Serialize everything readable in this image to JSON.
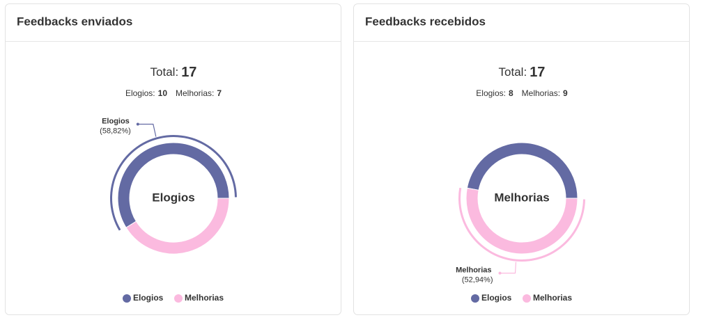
{
  "chart_data": [
    {
      "type": "donut",
      "title": "Feedbacks enviados",
      "total_label": "Total:",
      "total": 17,
      "summary_labels": [
        "Elogios:",
        "Melhorias:"
      ],
      "categories": [
        "Elogios",
        "Melhorias"
      ],
      "values": [
        10,
        7
      ],
      "colors": [
        "#636aa3",
        "#fbbadf"
      ],
      "center_label": "Elogios",
      "callout": {
        "label": "Elogios",
        "value_label": "(58,82%)"
      }
    },
    {
      "type": "donut",
      "title": "Feedbacks recebidos",
      "total_label": "Total:",
      "total": 17,
      "summary_labels": [
        "Elogios:",
        "Melhorias:"
      ],
      "categories": [
        "Elogios",
        "Melhorias"
      ],
      "values": [
        8,
        9
      ],
      "colors": [
        "#636aa3",
        "#fbbadf"
      ],
      "center_label": "Melhorias",
      "callout": {
        "label": "Melhorias",
        "value_label": "(52,94%)"
      }
    }
  ]
}
